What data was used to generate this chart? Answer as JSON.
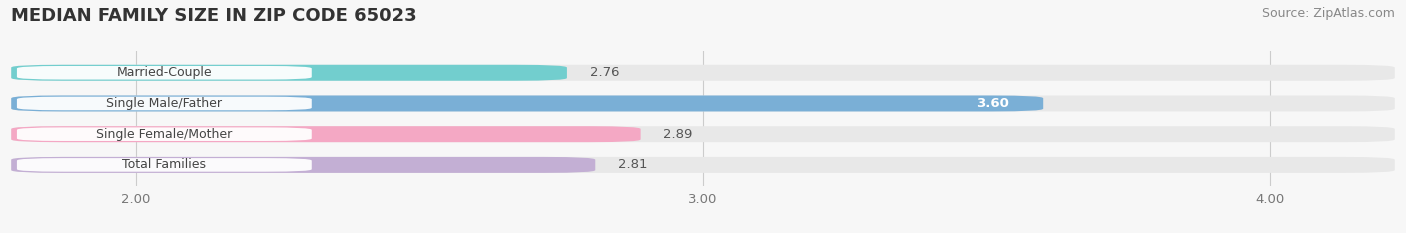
{
  "title": "MEDIAN FAMILY SIZE IN ZIP CODE 65023",
  "source": "Source: ZipAtlas.com",
  "categories": [
    "Married-Couple",
    "Single Male/Father",
    "Single Female/Mother",
    "Total Families"
  ],
  "values": [
    2.76,
    3.6,
    2.89,
    2.81
  ],
  "bar_colors": [
    "#72cece",
    "#7aafd6",
    "#f4a8c4",
    "#c3afd4"
  ],
  "label_colors": [
    "#333333",
    "#ffffff",
    "#333333",
    "#333333"
  ],
  "xlim": [
    1.78,
    4.22
  ],
  "xstart": 1.78,
  "xticks": [
    2.0,
    3.0,
    4.0
  ],
  "xtick_labels": [
    "2.00",
    "3.00",
    "4.00"
  ],
  "bar_height": 0.52,
  "title_fontsize": 13,
  "source_fontsize": 9,
  "label_fontsize": 9.5,
  "tick_fontsize": 9.5,
  "category_fontsize": 9,
  "background_color": "#f7f7f7",
  "bar_bg_color": "#e8e8e8",
  "white_label_bg": "#ffffff"
}
